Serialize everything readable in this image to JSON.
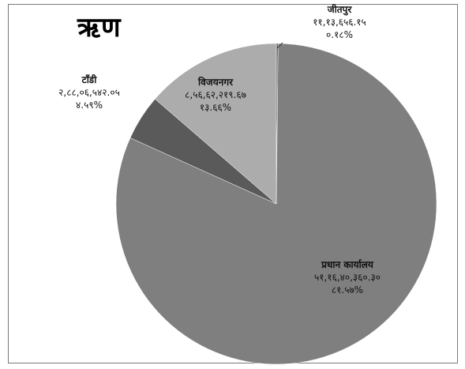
{
  "chart_data": {
    "type": "pie",
    "title": "ऋण",
    "slices": [
      {
        "name": "जीतपुर",
        "amount": "११,१३,६५६.१५",
        "percent_label": "०.१८%",
        "percent": 0.18,
        "color": "#5e5e5e"
      },
      {
        "name": "प्रधान कार्यालय",
        "amount": "५१,१६,४०,३६०.३०",
        "percent_label": "८१.५७%",
        "percent": 81.57,
        "color": "#7f7f7f"
      },
      {
        "name": "टाँडी",
        "amount": "२,८८,०६,५४२.०५",
        "percent_label": "४.५९%",
        "percent": 4.59,
        "color": "#5a5a5a"
      },
      {
        "name": "विजयनगर",
        "amount": "८,५६,६२,२१९.६७",
        "percent_label": "१३.६६%",
        "percent": 13.66,
        "color": "#acacac"
      }
    ]
  }
}
